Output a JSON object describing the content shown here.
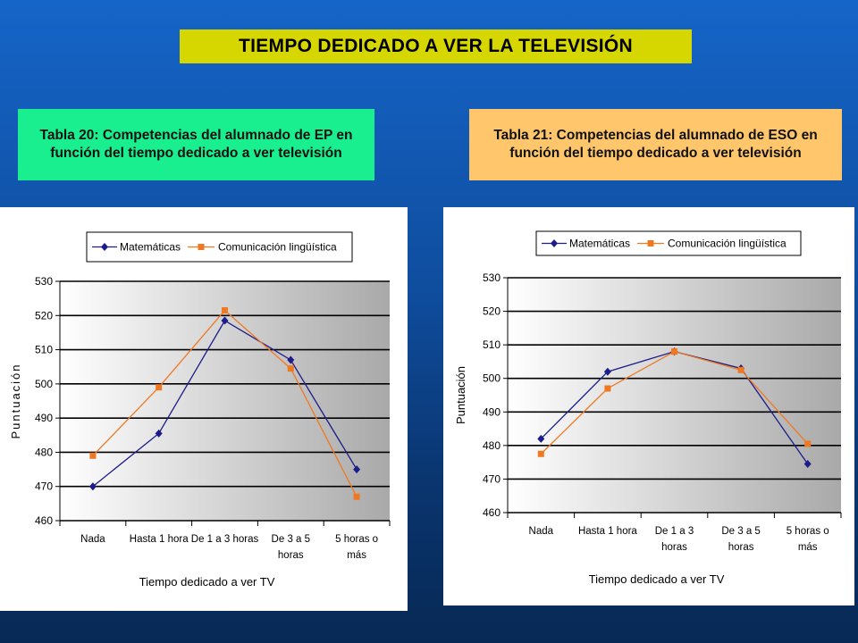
{
  "title": "TIEMPO DEDICADO A VER LA TELEVISIÓN",
  "captions": {
    "left": "Tabla 20: Competencias del alumnado de EP en función del tiempo dedicado a ver televisión",
    "right": "Tabla 21: Competencias del alumnado de ESO en función del tiempo dedicado a ver televisión"
  },
  "colors": {
    "matematicas": "#1c1c8a",
    "comunicacion": "#f07820"
  },
  "chart_data": [
    {
      "type": "line",
      "categories": [
        "Nada",
        "Hasta 1 hora",
        "De 1 a 3 horas",
        "De 3 a 5 horas",
        "5 horas o más"
      ],
      "category_lines": [
        [
          "Nada"
        ],
        [
          "Hasta 1 hora"
        ],
        [
          "De 1 a 3 horas"
        ],
        [
          "De 3 a 5",
          "horas"
        ],
        [
          "5 horas o",
          "más"
        ]
      ],
      "series": [
        {
          "name": "Matemáticas",
          "values": [
            470,
            485.5,
            518.5,
            507,
            475
          ]
        },
        {
          "name": "Comunicación lingüística",
          "values": [
            479,
            499,
            521.5,
            504.5,
            467
          ]
        }
      ],
      "xlabel": "Tiempo dedicado a ver TV",
      "ylabel": "Puntuación",
      "ylim": [
        460,
        530
      ],
      "yticks": [
        "460",
        "470",
        "480",
        "490",
        "500",
        "510",
        "520",
        "530"
      ],
      "grid": true,
      "legend": "top"
    },
    {
      "type": "line",
      "categories": [
        "Nada",
        "Hasta 1 hora",
        "De 1 a 3 horas",
        "De 3 a 5 horas",
        "5 horas o más"
      ],
      "category_lines": [
        [
          "Nada"
        ],
        [
          "Hasta 1 hora"
        ],
        [
          "De 1 a 3",
          "horas"
        ],
        [
          "De 3 a 5",
          "horas"
        ],
        [
          "5 horas o",
          "más"
        ]
      ],
      "series": [
        {
          "name": "Matemáticas",
          "values": [
            482,
            502,
            508,
            503,
            474.5
          ]
        },
        {
          "name": "Comunicación lingüística",
          "values": [
            477.5,
            497,
            508,
            502.5,
            480.5
          ]
        }
      ],
      "xlabel": "Tiempo dedicado a ver TV",
      "ylabel": "Puntuación",
      "ylim": [
        460,
        530
      ],
      "yticks": [
        "460",
        "470",
        "480",
        "490",
        "500",
        "510",
        "520",
        "530"
      ],
      "grid": true,
      "legend": "top"
    }
  ]
}
